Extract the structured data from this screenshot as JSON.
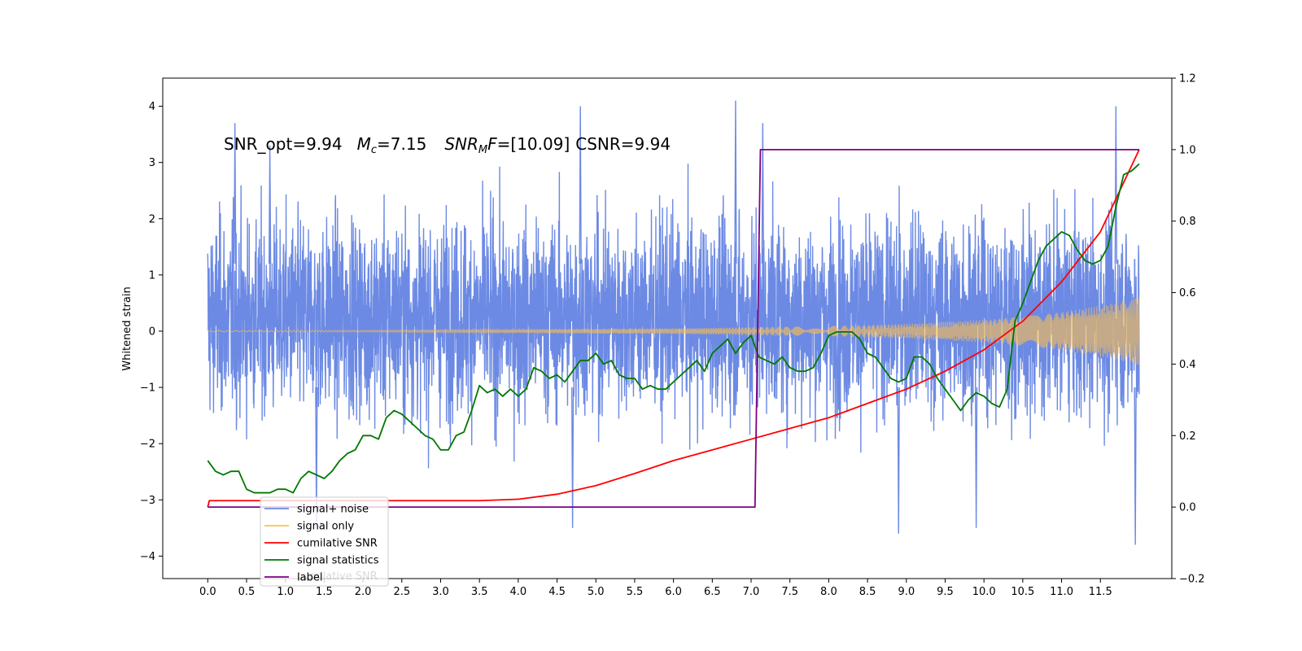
{
  "chart_data": {
    "type": "line",
    "ylabel": "Whitened strain",
    "annotation": {
      "snr_opt": "SNR_opt=9.94",
      "mc_symbol": "M",
      "mc_sub": "c",
      "mc_value": "=7.15",
      "snrmf_symbol": "SNR",
      "snrmf_sub": "M",
      "snrmf_f": "F",
      "snrmf_value": "=[10.09]",
      "csnr": "CSNR=9.94"
    },
    "xlim": [
      -0.58,
      12.42
    ],
    "xticks": [
      0.0,
      0.5,
      1.0,
      1.5,
      2.0,
      2.5,
      3.0,
      3.5,
      4.0,
      4.5,
      5.0,
      5.5,
      6.0,
      6.5,
      7.0,
      7.5,
      8.0,
      8.5,
      9.0,
      9.5,
      10.0,
      10.5,
      11.0,
      11.5
    ],
    "xtick_labels": [
      "0.0",
      "0.5",
      "1.0",
      "1.5",
      "2.0",
      "2.5",
      "3.0",
      "3.5",
      "4.0",
      "4.5",
      "5.0",
      "5.5",
      "6.0",
      "6.5",
      "7.0",
      "7.5",
      "8.0",
      "8.5",
      "9.0",
      "9.5",
      "10.0",
      "10.5",
      "11.0",
      "11.5"
    ],
    "ylim_left": [
      -4.4,
      4.5
    ],
    "yticks_left": [
      -4,
      -3,
      -2,
      -1,
      0,
      1,
      2,
      3,
      4
    ],
    "ytick_labels_left": [
      "−4",
      "−3",
      "−2",
      "−1",
      "0",
      "1",
      "2",
      "3",
      "4"
    ],
    "ylim_right": [
      -0.2,
      1.2
    ],
    "yticks_right": [
      -0.2,
      0.0,
      0.2,
      0.4,
      0.6,
      0.8,
      1.0,
      1.2
    ],
    "ytick_labels_right": [
      "−0.2",
      "0.0",
      "0.2",
      "0.4",
      "0.6",
      "0.8",
      "1.0",
      "1.2"
    ],
    "legend": {
      "placement": "lower-left",
      "entries": [
        {
          "label": "signal+ noise",
          "color": "#6c8ae4"
        },
        {
          "label": "signal only",
          "color": "#ffc04d"
        },
        {
          "label": "cumilative SNR",
          "color": "#ff0000"
        },
        {
          "label": "signal statistics",
          "color": "#007800"
        },
        {
          "label": "label",
          "color": "#800080"
        }
      ],
      "ghost_text": "cumilative SNR"
    },
    "series": [
      {
        "name": "signal+ noise",
        "axis": "left",
        "color": "#6c8ae4",
        "description_type": "noise",
        "x_range": [
          0.0,
          12.0
        ],
        "envelope_typical": [
          -1.8,
          2.3
        ],
        "extremes": {
          "x": [
            0.35,
            0.8,
            4.8,
            6.8,
            7.15,
            11.7,
            1.4,
            4.7,
            8.9,
            9.9,
            11.95
          ],
          "y": [
            3.7,
            3.3,
            4.0,
            4.1,
            3.7,
            4.0,
            -3.4,
            -3.5,
            -3.6,
            -3.5,
            -3.8
          ]
        }
      },
      {
        "name": "signal only",
        "axis": "left",
        "color": "#ffc04d",
        "description_type": "chirp",
        "amplitude_x": [
          0.0,
          2.0,
          4.0,
          6.0,
          7.0,
          8.0,
          9.0,
          10.0,
          10.5,
          11.0,
          11.5,
          12.0
        ],
        "amplitude_y": [
          0.01,
          0.015,
          0.03,
          0.05,
          0.07,
          0.09,
          0.13,
          0.2,
          0.26,
          0.34,
          0.45,
          0.6
        ]
      },
      {
        "name": "cumilative SNR",
        "axis": "right",
        "color": "#ff0000",
        "x": [
          0.0,
          0.02,
          3.5,
          4.0,
          4.5,
          5.0,
          5.5,
          6.0,
          6.5,
          7.0,
          7.5,
          8.0,
          8.5,
          9.0,
          9.5,
          10.0,
          10.5,
          11.0,
          11.5,
          12.0
        ],
        "values": [
          0.0,
          0.018,
          0.018,
          0.022,
          0.036,
          0.06,
          0.094,
          0.13,
          0.16,
          0.19,
          0.22,
          0.25,
          0.29,
          0.33,
          0.38,
          0.44,
          0.52,
          0.63,
          0.77,
          1.0
        ]
      },
      {
        "name": "signal statistics",
        "axis": "right",
        "color": "#007800",
        "x": [
          0.0,
          0.1,
          0.2,
          0.3,
          0.4,
          0.5,
          0.6,
          0.7,
          0.8,
          0.9,
          1.0,
          1.1,
          1.2,
          1.3,
          1.4,
          1.5,
          1.6,
          1.7,
          1.8,
          1.9,
          2.0,
          2.1,
          2.2,
          2.3,
          2.4,
          2.5,
          2.6,
          2.7,
          2.8,
          2.9,
          3.0,
          3.1,
          3.2,
          3.3,
          3.4,
          3.5,
          3.6,
          3.7,
          3.8,
          3.9,
          4.0,
          4.1,
          4.2,
          4.3,
          4.4,
          4.5,
          4.6,
          4.7,
          4.8,
          4.9,
          5.0,
          5.1,
          5.2,
          5.3,
          5.4,
          5.5,
          5.6,
          5.7,
          5.8,
          5.9,
          6.0,
          6.1,
          6.2,
          6.3,
          6.4,
          6.5,
          6.6,
          6.7,
          6.8,
          6.9,
          7.0,
          7.1,
          7.2,
          7.3,
          7.4,
          7.5,
          7.6,
          7.7,
          7.8,
          7.9,
          8.0,
          8.1,
          8.2,
          8.3,
          8.4,
          8.5,
          8.6,
          8.7,
          8.8,
          8.9,
          9.0,
          9.1,
          9.2,
          9.3,
          9.4,
          9.5,
          9.6,
          9.7,
          9.8,
          9.9,
          10.0,
          10.1,
          10.2,
          10.3,
          10.4,
          10.5,
          10.6,
          10.7,
          10.8,
          10.9,
          11.0,
          11.1,
          11.2,
          11.3,
          11.4,
          11.5,
          11.6,
          11.7,
          11.8,
          11.9,
          12.0
        ],
        "values": [
          0.13,
          0.1,
          0.09,
          0.1,
          0.1,
          0.05,
          0.04,
          0.04,
          0.04,
          0.05,
          0.05,
          0.04,
          0.08,
          0.1,
          0.09,
          0.08,
          0.1,
          0.13,
          0.15,
          0.16,
          0.2,
          0.2,
          0.19,
          0.25,
          0.27,
          0.26,
          0.24,
          0.22,
          0.2,
          0.19,
          0.16,
          0.16,
          0.2,
          0.21,
          0.27,
          0.34,
          0.32,
          0.33,
          0.31,
          0.33,
          0.31,
          0.33,
          0.39,
          0.38,
          0.36,
          0.37,
          0.35,
          0.38,
          0.41,
          0.41,
          0.43,
          0.4,
          0.41,
          0.37,
          0.36,
          0.36,
          0.33,
          0.34,
          0.33,
          0.33,
          0.35,
          0.37,
          0.39,
          0.41,
          0.38,
          0.43,
          0.45,
          0.47,
          0.43,
          0.46,
          0.48,
          0.42,
          0.41,
          0.4,
          0.42,
          0.39,
          0.38,
          0.38,
          0.39,
          0.43,
          0.48,
          0.49,
          0.49,
          0.49,
          0.47,
          0.43,
          0.42,
          0.39,
          0.36,
          0.35,
          0.36,
          0.42,
          0.42,
          0.4,
          0.36,
          0.33,
          0.3,
          0.27,
          0.3,
          0.32,
          0.31,
          0.29,
          0.28,
          0.33,
          0.52,
          0.57,
          0.63,
          0.69,
          0.73,
          0.75,
          0.77,
          0.76,
          0.72,
          0.69,
          0.68,
          0.69,
          0.73,
          0.84,
          0.93,
          0.94,
          0.96
        ]
      },
      {
        "name": "label",
        "axis": "right",
        "color": "#800080",
        "x": [
          0.0,
          7.05,
          7.12,
          12.0
        ],
        "values": [
          0.0,
          0.0,
          1.0,
          1.0
        ]
      }
    ]
  }
}
